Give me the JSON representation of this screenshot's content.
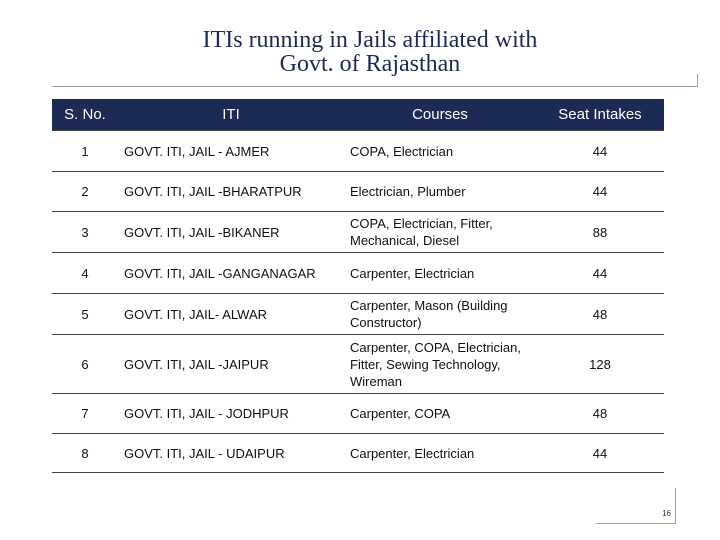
{
  "slide": {
    "title_line1": "ITIs running in Jails affiliated with",
    "title_line2": "Govt. of Rajasthan",
    "page_number": "16"
  },
  "table": {
    "headers": [
      "S. No.",
      "ITI",
      "Courses",
      "Seat Intakes"
    ],
    "rows": [
      {
        "no": "1",
        "iti": "GOVT. ITI, JAIL - AJMER",
        "courses": "COPA, Electrician",
        "seats": "44"
      },
      {
        "no": "2",
        "iti": "GOVT. ITI, JAIL -BHARATPUR",
        "courses": "Electrician, Plumber",
        "seats": "44"
      },
      {
        "no": "3",
        "iti": "GOVT. ITI, JAIL -BIKANER",
        "courses": "COPA, Electrician, Fitter, Mechanical, Diesel",
        "seats": "88"
      },
      {
        "no": "4",
        "iti": "GOVT. ITI, JAIL -GANGANAGAR",
        "courses": "Carpenter, Electrician",
        "seats": "44"
      },
      {
        "no": "5",
        "iti": "GOVT. ITI, JAIL- ALWAR",
        "courses": "Carpenter, Mason (Building Constructor)",
        "seats": "48"
      },
      {
        "no": "6",
        "iti": "GOVT. ITI, JAIL -JAIPUR",
        "courses": "Carpenter, COPA, Electrician, Fitter, Sewing Technology, Wireman",
        "seats": "128"
      },
      {
        "no": "7",
        "iti": "GOVT. ITI, JAIL - JODHPUR",
        "courses": "Carpenter, COPA",
        "seats": "48"
      },
      {
        "no": "8",
        "iti": "GOVT. ITI, JAIL - UDAIPUR",
        "courses": "Carpenter, Electrician",
        "seats": "44"
      }
    ]
  }
}
